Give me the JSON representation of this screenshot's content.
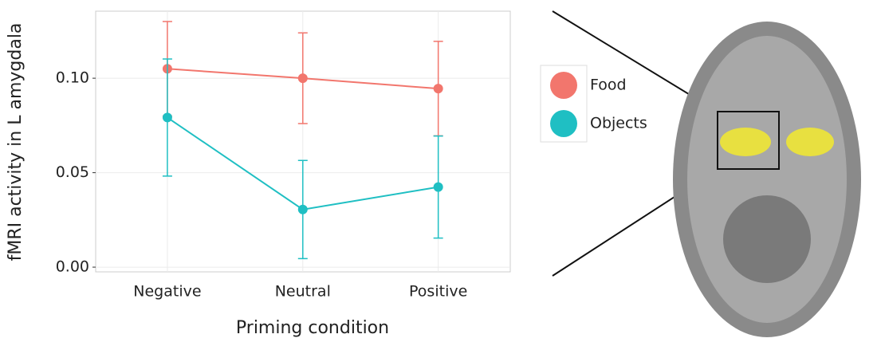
{
  "chart_data": {
    "type": "line",
    "x_label": "Priming condition",
    "y_label": "fMRI activity in L amygdala",
    "categories": [
      "Negative",
      "Neutral",
      "Positive"
    ],
    "series": [
      {
        "name": "Food",
        "color": "#f2766d",
        "values": [
          0.105,
          0.1,
          0.0945
        ],
        "errors": [
          0.025,
          0.024,
          0.025
        ]
      },
      {
        "name": "Objects",
        "color": "#1fbfc3",
        "values": [
          0.0792,
          0.0305,
          0.0424
        ],
        "errors": [
          0.031,
          0.026,
          0.027
        ]
      }
    ],
    "ylim": [
      -0.0025,
      0.1355
    ],
    "yticks": [
      {
        "value": 0,
        "label": "0.00"
      },
      {
        "value": 0.05,
        "label": "0.05"
      },
      {
        "value": 0.1,
        "label": "0.10"
      }
    ],
    "grid": true
  }
}
